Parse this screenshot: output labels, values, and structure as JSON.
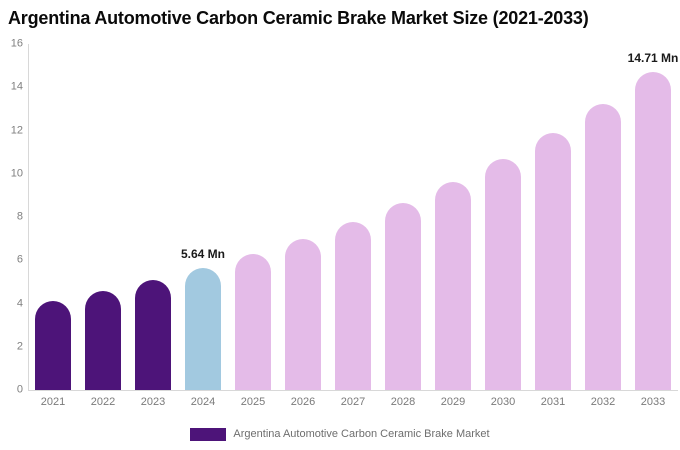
{
  "chart_data": {
    "type": "bar",
    "title": "Argentina Automotive Carbon Ceramic Brake Market Size (2021-2033)",
    "xlabel": "",
    "ylabel": "",
    "unit": "Mn",
    "categories": [
      "2021",
      "2022",
      "2023",
      "2024",
      "2025",
      "2026",
      "2027",
      "2028",
      "2029",
      "2030",
      "2031",
      "2032",
      "2033"
    ],
    "values": [
      4.1,
      4.57,
      5.08,
      5.64,
      6.27,
      6.98,
      7.76,
      8.64,
      9.61,
      10.68,
      11.88,
      13.22,
      14.71
    ],
    "bar_colors": [
      "#4d1479",
      "#4d1479",
      "#4d1479",
      "#a2c9e0",
      "#e4bbe8",
      "#e4bbe8",
      "#e4bbe8",
      "#e4bbe8",
      "#e4bbe8",
      "#e4bbe8",
      "#e4bbe8",
      "#e4bbe8",
      "#e4bbe8"
    ],
    "value_labels": [
      "",
      "",
      "",
      "5.64 Mn",
      "",
      "",
      "",
      "",
      "",
      "",
      "",
      "",
      "14.71 Mn"
    ],
    "ylim": [
      0,
      16
    ],
    "yticks": [
      0,
      2,
      4,
      6,
      8,
      10,
      12,
      14,
      16
    ],
    "grid": false,
    "legend": {
      "label": "Argentina Automotive Carbon Ceramic Brake Market",
      "swatch_color": "#4d1479",
      "position": "bottom-center"
    },
    "colors": {
      "historical_bars": "#4d1479",
      "base_year_bar": "#a2c9e0",
      "forecast_bars": "#e4bbe8",
      "axis_line": "#d8d8d8",
      "tick_text": "#7f7f7f",
      "legend_text": "#6e6e6e",
      "title_text": "#0a0a0a"
    }
  }
}
